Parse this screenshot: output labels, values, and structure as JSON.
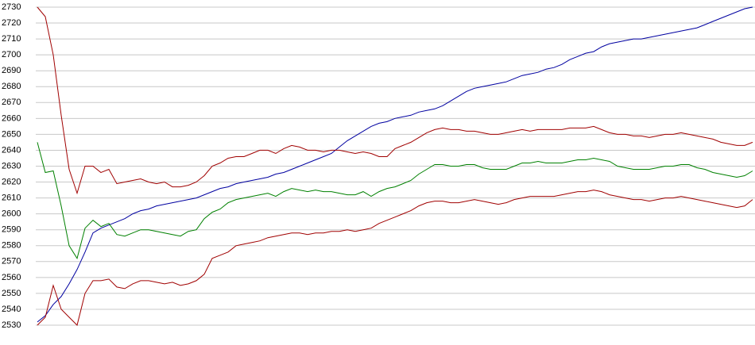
{
  "chart_data": {
    "type": "line",
    "ylim": [
      2530,
      2730
    ],
    "yticks": [
      2530,
      2540,
      2550,
      2560,
      2570,
      2580,
      2590,
      2600,
      2610,
      2620,
      2630,
      2640,
      2650,
      2660,
      2670,
      2680,
      2690,
      2700,
      2710,
      2720,
      2730
    ],
    "grid": true,
    "series": [
      {
        "color": "#0000a0",
        "values": [
          2532,
          2536,
          2543,
          2548,
          2556,
          2565,
          2576,
          2588,
          2591,
          2593,
          2595,
          2597,
          2600,
          2602,
          2603,
          2605,
          2606,
          2607,
          2608,
          2609,
          2610,
          2612,
          2614,
          2616,
          2617,
          2619,
          2620,
          2621,
          2622,
          2623,
          2625,
          2626,
          2628,
          2630,
          2632,
          2634,
          2636,
          2638,
          2642,
          2646,
          2649,
          2652,
          2655,
          2657,
          2658,
          2660,
          2661,
          2662,
          2664,
          2665,
          2666,
          2668,
          2671,
          2674,
          2677,
          2679,
          2680,
          2681,
          2682,
          2683,
          2685,
          2687,
          2688,
          2689,
          2691,
          2692,
          2694,
          2697,
          2699,
          2701,
          2702,
          2705,
          2707,
          2708,
          2709,
          2710,
          2710,
          2711,
          2712,
          2713,
          2714,
          2715,
          2716,
          2717,
          2719,
          2721,
          2723,
          2725,
          2727,
          2729,
          2730
        ]
      },
      {
        "color": "#008000",
        "values": [
          2645,
          2626,
          2627,
          2605,
          2580,
          2572,
          2591,
          2596,
          2592,
          2594,
          2587,
          2586,
          2588,
          2590,
          2590,
          2589,
          2588,
          2587,
          2586,
          2589,
          2590,
          2597,
          2601,
          2603,
          2607,
          2609,
          2610,
          2611,
          2612,
          2613,
          2611,
          2614,
          2616,
          2615,
          2614,
          2615,
          2614,
          2614,
          2613,
          2612,
          2612,
          2614,
          2611,
          2614,
          2616,
          2617,
          2619,
          2621,
          2625,
          2628,
          2631,
          2631,
          2630,
          2630,
          2631,
          2631,
          2629,
          2628,
          2628,
          2628,
          2630,
          2632,
          2632,
          2633,
          2632,
          2632,
          2632,
          2633,
          2634,
          2634,
          2635,
          2634,
          2633,
          2630,
          2629,
          2628,
          2628,
          2628,
          2629,
          2630,
          2630,
          2631,
          2631,
          2629,
          2628,
          2626,
          2625,
          2624,
          2623,
          2624,
          2627
        ]
      },
      {
        "color": "#a00000",
        "values": [
          2730,
          2724,
          2700,
          2662,
          2628,
          2613,
          2630,
          2630,
          2626,
          2628,
          2619,
          2620,
          2621,
          2622,
          2620,
          2619,
          2620,
          2617,
          2617,
          2618,
          2620,
          2624,
          2630,
          2632,
          2635,
          2636,
          2636,
          2638,
          2640,
          2640,
          2638,
          2641,
          2643,
          2642,
          2640,
          2640,
          2639,
          2640,
          2640,
          2639,
          2638,
          2639,
          2638,
          2636,
          2636,
          2641,
          2643,
          2645,
          2648,
          2651,
          2653,
          2654,
          2653,
          2653,
          2652,
          2652,
          2651,
          2650,
          2650,
          2651,
          2652,
          2653,
          2652,
          2653,
          2653,
          2653,
          2653,
          2654,
          2654,
          2654,
          2655,
          2653,
          2651,
          2650,
          2650,
          2649,
          2649,
          2648,
          2649,
          2650,
          2650,
          2651,
          2650,
          2649,
          2648,
          2647,
          2645,
          2644,
          2643,
          2643,
          2645
        ]
      },
      {
        "color": "#a00000",
        "values": [
          2530,
          2535,
          2555,
          2540,
          2535,
          2530,
          2550,
          2558,
          2558,
          2559,
          2554,
          2553,
          2556,
          2558,
          2558,
          2557,
          2556,
          2557,
          2555,
          2556,
          2558,
          2562,
          2572,
          2574,
          2576,
          2580,
          2581,
          2582,
          2583,
          2585,
          2586,
          2587,
          2588,
          2588,
          2587,
          2588,
          2588,
          2589,
          2589,
          2590,
          2589,
          2590,
          2591,
          2594,
          2596,
          2598,
          2600,
          2602,
          2605,
          2607,
          2608,
          2608,
          2607,
          2607,
          2608,
          2609,
          2608,
          2607,
          2606,
          2607,
          2609,
          2610,
          2611,
          2611,
          2611,
          2611,
          2612,
          2613,
          2614,
          2614,
          2615,
          2614,
          2612,
          2611,
          2610,
          2609,
          2609,
          2608,
          2609,
          2610,
          2610,
          2611,
          2610,
          2609,
          2608,
          2607,
          2606,
          2605,
          2604,
          2605,
          2609
        ]
      }
    ]
  }
}
